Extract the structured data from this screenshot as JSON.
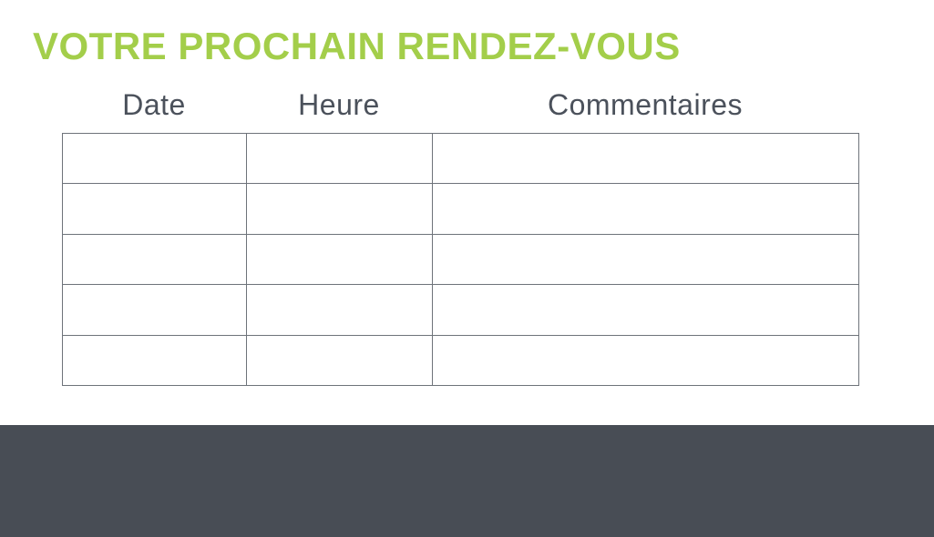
{
  "page": {
    "title": "VOTRE PROCHAIN RENDEZ-VOUS"
  },
  "colors": {
    "accent_green": "#a3ce4a",
    "footer_dark": "#484d55",
    "header_text": "#4b515b",
    "table_border": "#6e737a"
  },
  "table": {
    "columns": [
      {
        "label": "Date"
      },
      {
        "label": "Heure"
      },
      {
        "label": "Commentaires"
      }
    ],
    "row_count": 5,
    "rows": [
      [
        "",
        "",
        ""
      ],
      [
        "",
        "",
        ""
      ],
      [
        "",
        "",
        ""
      ],
      [
        "",
        "",
        ""
      ],
      [
        "",
        "",
        ""
      ]
    ]
  }
}
